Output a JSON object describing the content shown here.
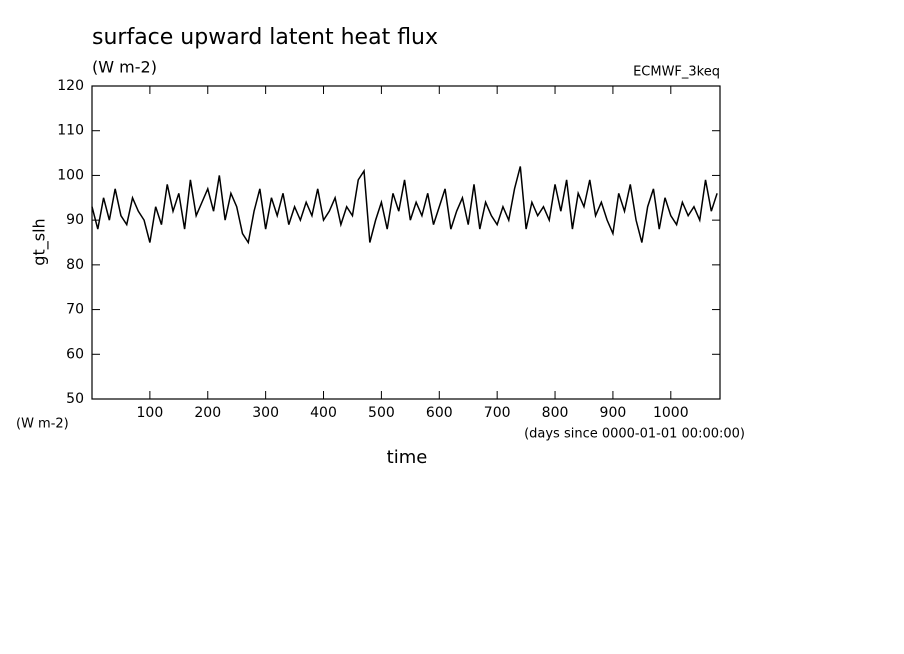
{
  "chart_data": {
    "type": "line",
    "title": "surface upward latent heat flux",
    "subtitle": "(W m-2)",
    "annotation": "ECMWF_3keq",
    "ylabel": "gt_slh",
    "y_unit": "(W m-2)",
    "xlabel": "time",
    "x_unit": "(days since 0000-01-01 00:00:00)",
    "xlim": [
      0,
      1085
    ],
    "ylim": [
      50,
      120
    ],
    "xticks": [
      100,
      200,
      300,
      400,
      500,
      600,
      700,
      800,
      900,
      1000
    ],
    "yticks": [
      50,
      60,
      70,
      80,
      90,
      100,
      110,
      120
    ],
    "color": "#000000",
    "x": [
      0,
      10,
      20,
      30,
      40,
      50,
      60,
      70,
      80,
      90,
      100,
      110,
      120,
      130,
      140,
      150,
      160,
      170,
      180,
      190,
      200,
      210,
      220,
      230,
      240,
      250,
      260,
      270,
      280,
      290,
      300,
      310,
      320,
      330,
      340,
      350,
      360,
      370,
      380,
      390,
      400,
      410,
      420,
      430,
      440,
      450,
      460,
      470,
      480,
      490,
      500,
      510,
      520,
      530,
      540,
      550,
      560,
      570,
      580,
      590,
      600,
      610,
      620,
      630,
      640,
      650,
      660,
      670,
      680,
      690,
      700,
      710,
      720,
      730,
      740,
      750,
      760,
      770,
      780,
      790,
      800,
      810,
      820,
      830,
      840,
      850,
      860,
      870,
      880,
      890,
      900,
      910,
      920,
      930,
      940,
      950,
      960,
      970,
      980,
      990,
      1000,
      1010,
      1020,
      1030,
      1040,
      1050,
      1060,
      1070,
      1080
    ],
    "values": [
      93,
      88,
      95,
      90,
      97,
      91,
      89,
      95,
      92,
      90,
      85,
      93,
      89,
      98,
      92,
      96,
      88,
      99,
      91,
      94,
      97,
      92,
      100,
      90,
      96,
      93,
      87,
      85,
      92,
      97,
      88,
      95,
      91,
      96,
      89,
      93,
      90,
      94,
      91,
      97,
      90,
      92,
      95,
      89,
      93,
      91,
      99,
      101,
      85,
      90,
      94,
      88,
      96,
      92,
      99,
      90,
      94,
      91,
      96,
      89,
      93,
      97,
      88,
      92,
      95,
      89,
      98,
      88,
      94,
      91,
      89,
      93,
      90,
      97,
      102,
      88,
      94,
      91,
      93,
      90,
      98,
      92,
      99,
      88,
      96,
      93,
      99,
      91,
      94,
      90,
      87,
      96,
      92,
      98,
      90,
      85,
      93,
      97,
      88,
      95,
      91,
      89,
      94,
      91,
      93,
      90,
      99,
      92,
      96
    ]
  }
}
